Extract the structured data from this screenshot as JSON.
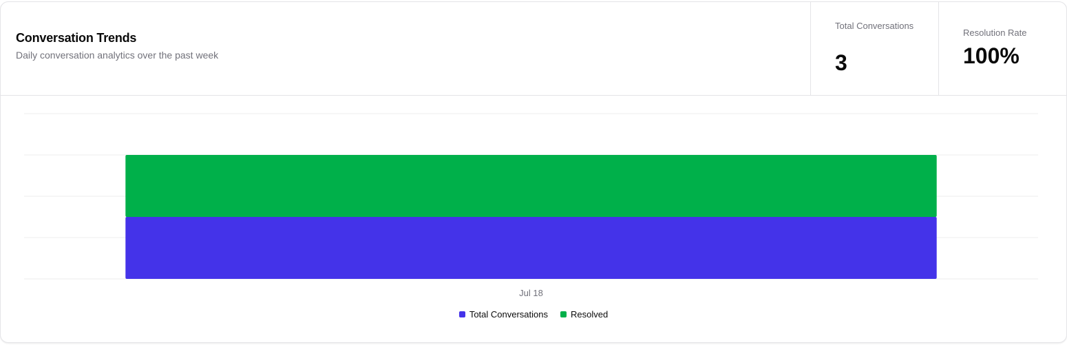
{
  "header": {
    "title": "Conversation Trends",
    "subtitle": "Daily conversation analytics over the past week"
  },
  "stats": {
    "total_label": "Total Conversations",
    "total_value": "3",
    "rate_label": "Resolution Rate",
    "rate_value": "100%"
  },
  "colors": {
    "total": "#4433e9",
    "resolved": "#00b04a",
    "grid": "#ececec"
  },
  "chart_data": {
    "type": "bar",
    "stacked": true,
    "categories": [
      "Jul 18"
    ],
    "series": [
      {
        "name": "Total Conversations",
        "values": [
          3
        ]
      },
      {
        "name": "Resolved",
        "values": [
          3
        ]
      }
    ],
    "ylim": [
      0,
      8
    ],
    "grid": true,
    "legend_position": "bottom"
  }
}
